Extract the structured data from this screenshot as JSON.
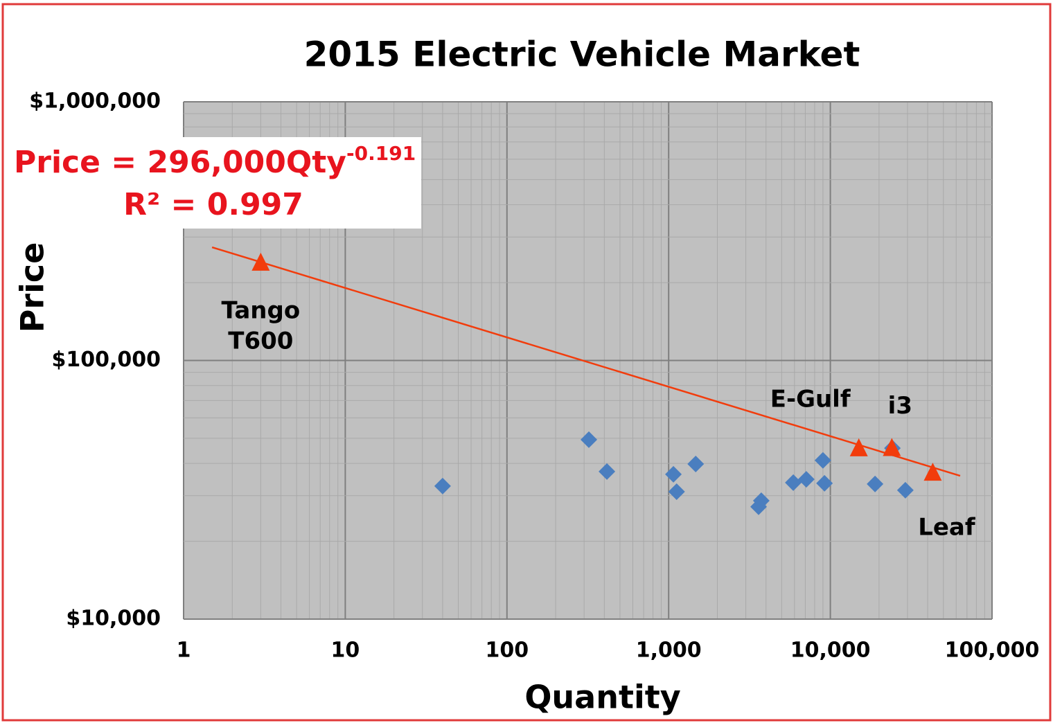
{
  "chart_data": {
    "type": "scatter",
    "title": "2015 Electric Vehicle Market",
    "x_label": "Quantity",
    "y_label": "Price",
    "x_scale": "log",
    "y_scale": "log",
    "grid": true,
    "xlim": [
      1,
      100000
    ],
    "ylim": [
      10000,
      1000000
    ],
    "xticks": [
      1,
      10,
      100,
      {
        "value": 1000,
        "label": "1,000"
      },
      {
        "value": 10000,
        "label": "10,000"
      },
      {
        "value": 100000,
        "label": "100,000"
      }
    ],
    "yticks": [
      {
        "value": 10000,
        "label": "$10,000"
      },
      {
        "value": 100000,
        "label": "$100,000"
      },
      {
        "value": 1000000,
        "label": "$1,000,000"
      }
    ],
    "series": [
      {
        "color": "#4a7ebf",
        "marker": "diamond",
        "x": [
          40,
          321,
          415,
          1070,
          1120,
          1470,
          3600,
          3740,
          5900,
          7100,
          9000,
          9200,
          18900,
          24200,
          29100
        ],
        "values": [
          32700,
          49400,
          37200,
          36300,
          31100,
          39800,
          27200,
          28700,
          33700,
          34700,
          41100,
          33500,
          33300,
          45800,
          31500
        ]
      },
      {
        "color": "#f23c0c",
        "marker": "triangle",
        "x": [
          3,
          15000,
          24000,
          43000
        ],
        "values": [
          238000,
          45600,
          45700,
          36700
        ],
        "labels": [
          [
            "Tango",
            "T600"
          ],
          [
            "E-Gulf"
          ],
          [
            "i3"
          ],
          [
            "Leaf"
          ]
        ]
      }
    ],
    "trendline": {
      "color": "#f23c0c",
      "coefficient": 296000,
      "exponent": -0.191,
      "x_range": [
        1.5,
        63500
      ]
    },
    "equation": "Price = 296,000Qty",
    "equation_exponent": "-0.191",
    "r_squared": "R² = 0.997"
  }
}
